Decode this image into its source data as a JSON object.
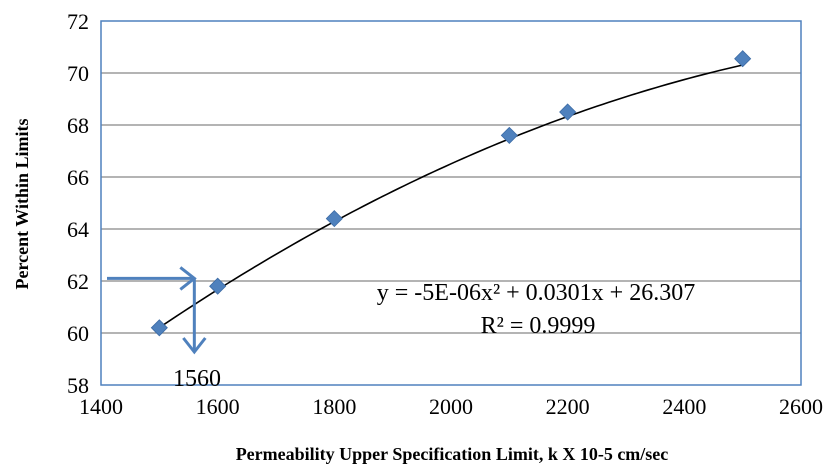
{
  "chart_data": {
    "type": "scatter",
    "title": "",
    "xlabel": "Permeability Upper Specification Limit, k X 10-5 cm/sec",
    "ylabel": "Percent Within Limits",
    "xlim": [
      1400,
      2600
    ],
    "ylim": [
      58,
      72
    ],
    "xticks": [
      1400,
      1600,
      1800,
      2000,
      2200,
      2400,
      2600
    ],
    "yticks": [
      58,
      60,
      62,
      64,
      66,
      68,
      70,
      72
    ],
    "grid": "horizontal",
    "series": [
      {
        "x": [
          1500,
          1600,
          1800,
          2100,
          2200,
          2500
        ],
        "y": [
          60.2,
          61.8,
          64.4,
          67.6,
          68.5,
          70.55
        ]
      }
    ],
    "trendline": {
      "type": "polynomial",
      "order": 2,
      "coefficients": [
        -5e-06,
        0.0301,
        26.307
      ],
      "equation": "y = -5E-06x² + 0.0301x + 26.307",
      "r_squared": "R² = 0.9999"
    },
    "annotation": {
      "label": "1560",
      "value_x": 1560,
      "value_y": 62.1
    },
    "colors": {
      "marker": "#4F81BD",
      "arrow": "#4F81BD",
      "gridline": "#868686",
      "plot_border": "#4F81BD",
      "trendline": "#000000"
    }
  }
}
